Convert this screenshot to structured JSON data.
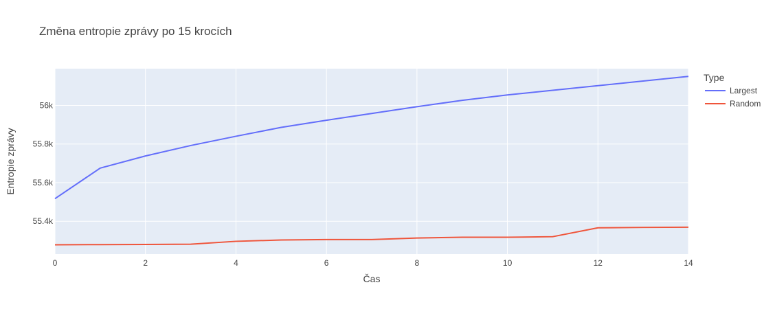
{
  "chart_data": {
    "type": "line",
    "title": "Změna entropie zprávy po 15 krocích",
    "xlabel": "Čas",
    "ylabel": "Entropie zprávy",
    "legend_title": "Type",
    "legend_placement": "right",
    "grid": true,
    "xlim": [
      0,
      14
    ],
    "ylim": [
      55230,
      56190
    ],
    "x_ticks": [
      0,
      2,
      4,
      6,
      8,
      10,
      12,
      14
    ],
    "y_ticks": [
      55400,
      55600,
      55800,
      56000
    ],
    "y_tick_labels": [
      "55.4k",
      "55.6k",
      "55.8k",
      "56k"
    ],
    "x": [
      0,
      1,
      2,
      3,
      4,
      5,
      6,
      7,
      8,
      9,
      10,
      11,
      12,
      13,
      14
    ],
    "series": [
      {
        "name": "Largest",
        "color": "#636efa",
        "values": [
          55517,
          55675,
          55738,
          55792,
          55840,
          55886,
          55923,
          55958,
          55993,
          56026,
          56054,
          56078,
          56102,
          56126,
          56150
        ]
      },
      {
        "name": "Random",
        "color": "#ef553b",
        "values": [
          55278,
          55279,
          55280,
          55281,
          55296,
          55303,
          55305,
          55305,
          55313,
          55317,
          55317,
          55320,
          55366,
          55368,
          55369
        ]
      }
    ],
    "colors": {
      "plot_bg": "#e5ecf6",
      "grid": "#ffffff",
      "text": "#444444",
      "title": "#444444"
    }
  }
}
